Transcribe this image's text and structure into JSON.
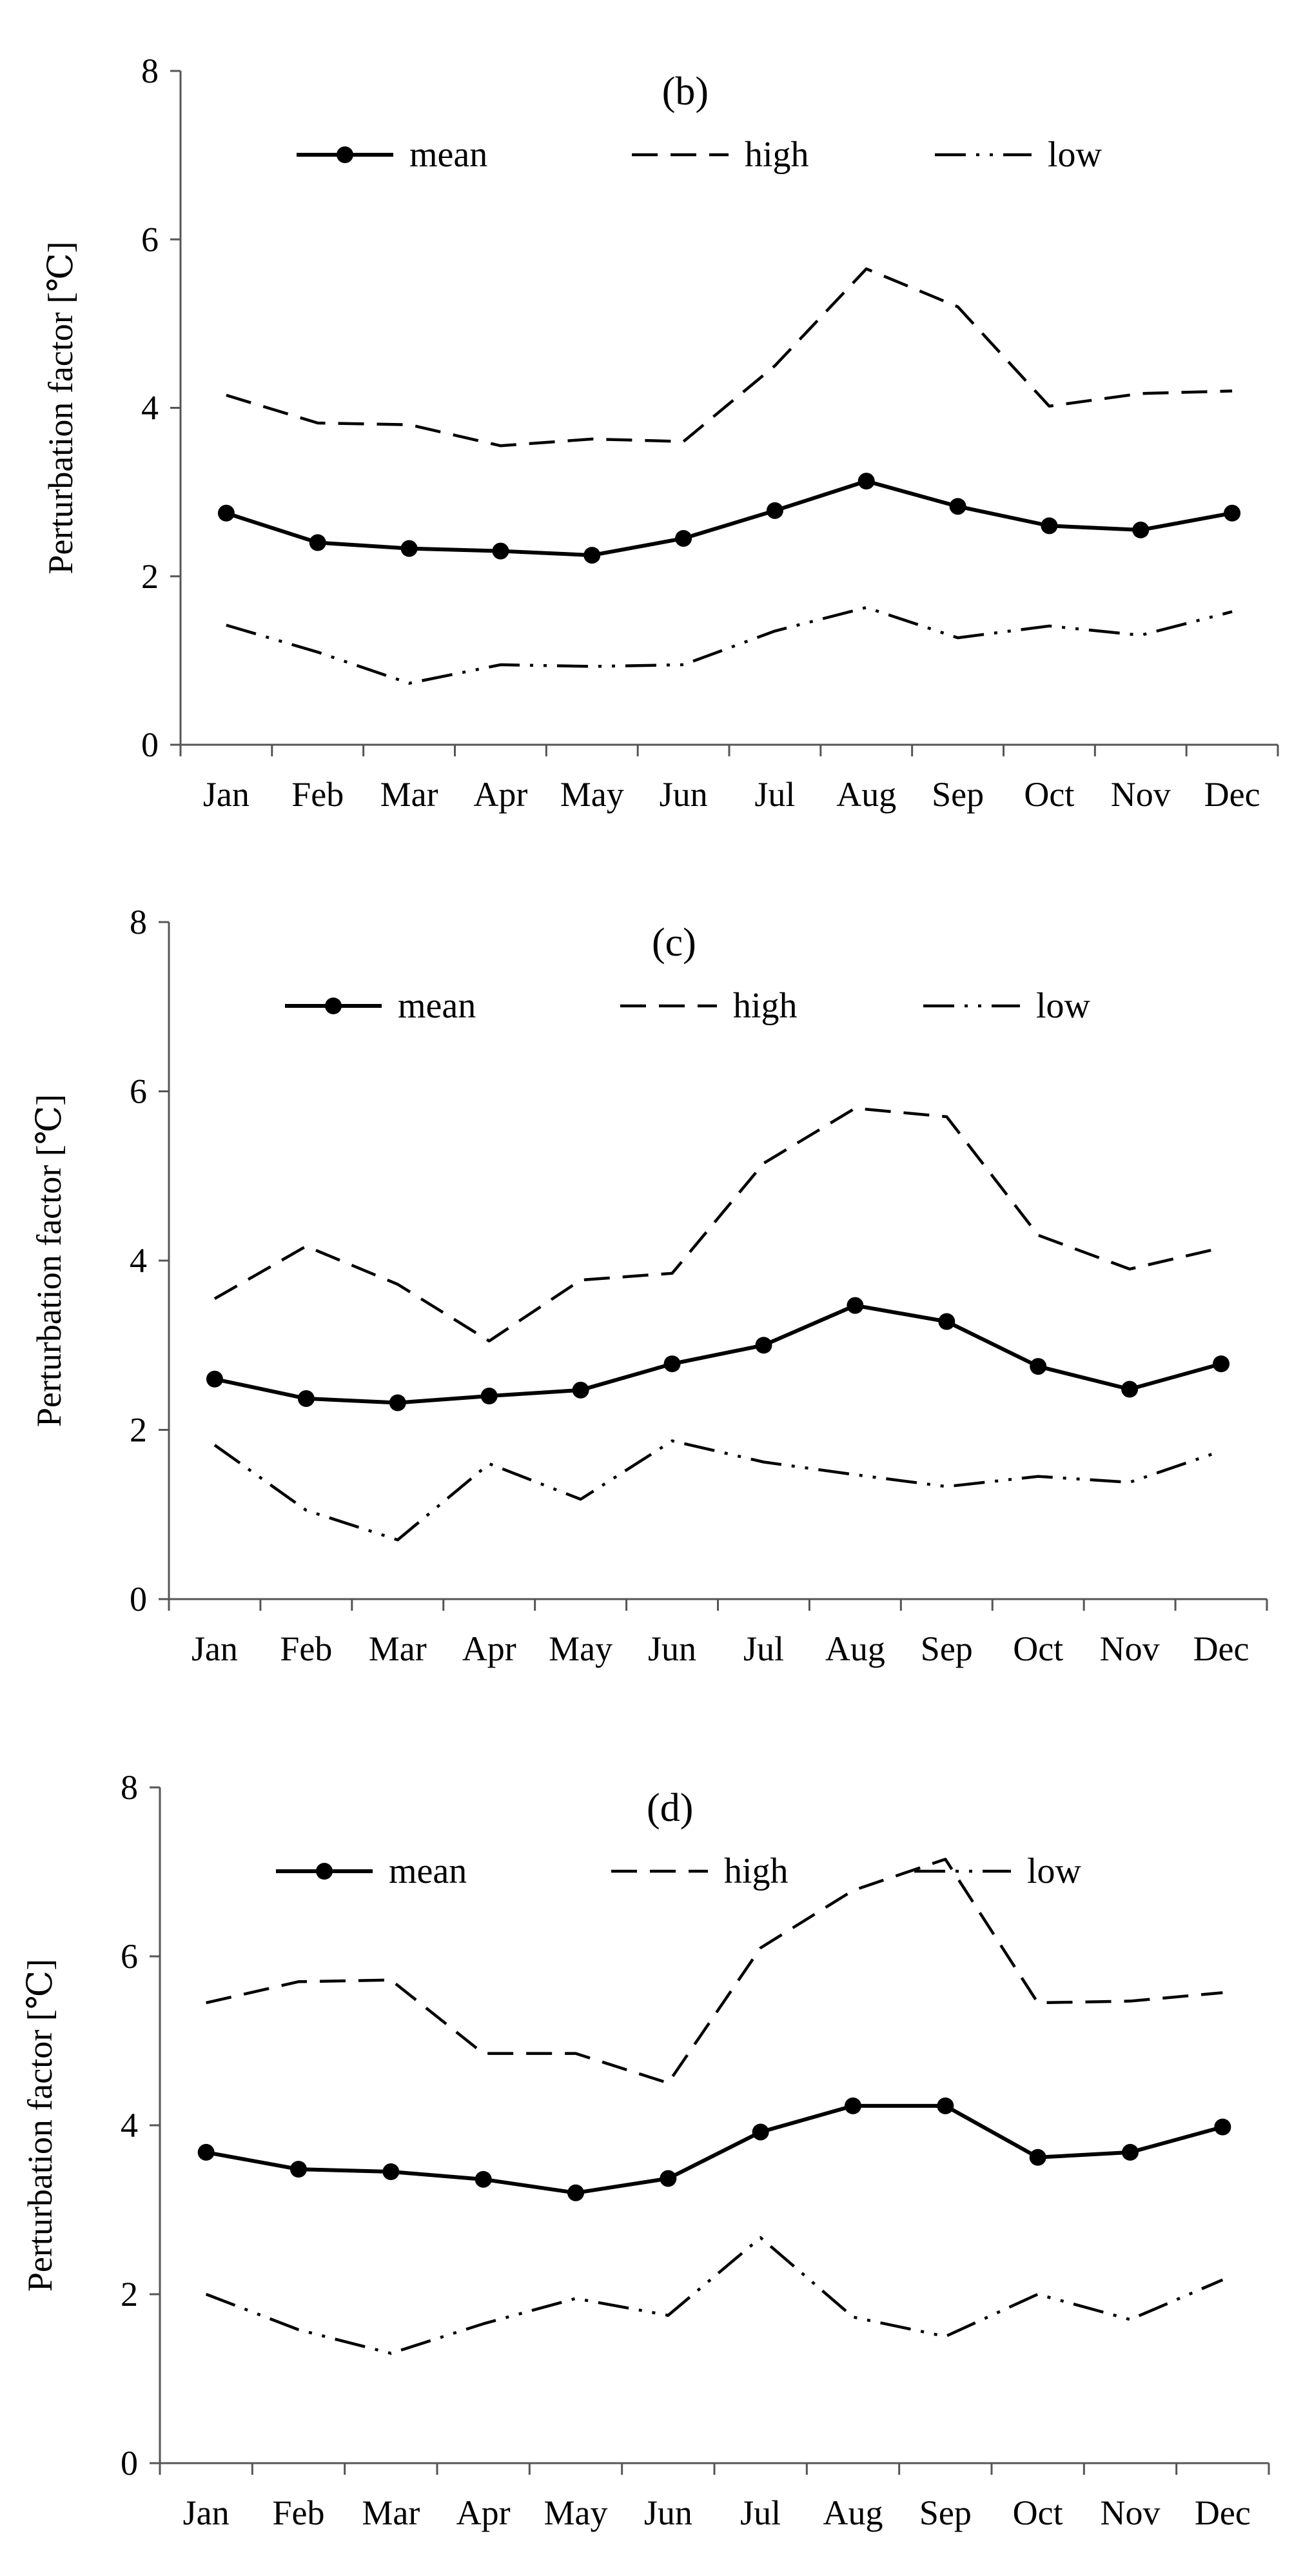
{
  "chart_data": [
    {
      "type": "line",
      "title": "(b)",
      "xlabel": "",
      "ylabel": "Perturbation factor  [℃]",
      "ylim": [
        0,
        8
      ],
      "yticks": [
        "0",
        "2",
        "4",
        "6",
        "8"
      ],
      "categories": [
        "Jan",
        "Feb",
        "Mar",
        "Apr",
        "May",
        "Jun",
        "Jul",
        "Aug",
        "Sep",
        "Oct",
        "Nov",
        "Dec"
      ],
      "legend_position": "top",
      "series": [
        {
          "name": "mean",
          "style": "solid-marker",
          "values": [
            2.75,
            2.4,
            2.33,
            2.3,
            2.25,
            2.45,
            2.78,
            3.13,
            2.83,
            2.6,
            2.55,
            2.75
          ]
        },
        {
          "name": "high",
          "style": "dashed",
          "values": [
            4.15,
            3.82,
            3.8,
            3.55,
            3.63,
            3.6,
            4.5,
            5.65,
            5.2,
            4.02,
            4.17,
            4.2
          ]
        },
        {
          "name": "low",
          "style": "dash-dot-dot",
          "values": [
            1.42,
            1.1,
            0.73,
            0.95,
            0.93,
            0.95,
            1.35,
            1.63,
            1.27,
            1.41,
            1.3,
            1.58
          ]
        }
      ]
    },
    {
      "type": "line",
      "title": "(c)",
      "xlabel": "",
      "ylabel": "Perturbation factor  [℃]",
      "ylim": [
        0,
        8
      ],
      "yticks": [
        "0",
        "2",
        "4",
        "6",
        "8"
      ],
      "categories": [
        "Jan",
        "Feb",
        "Mar",
        "Apr",
        "May",
        "Jun",
        "Jul",
        "Aug",
        "Sep",
        "Oct",
        "Nov",
        "Dec"
      ],
      "legend_position": "top",
      "series": [
        {
          "name": "mean",
          "style": "solid-marker",
          "values": [
            2.6,
            2.37,
            2.32,
            2.4,
            2.47,
            2.78,
            3.0,
            3.47,
            3.28,
            2.75,
            2.48,
            2.78
          ]
        },
        {
          "name": "high",
          "style": "dashed",
          "values": [
            3.55,
            4.17,
            3.72,
            3.05,
            3.77,
            3.85,
            5.15,
            5.8,
            5.7,
            4.3,
            3.9,
            4.15
          ]
        },
        {
          "name": "low",
          "style": "dash-dot-dot",
          "values": [
            1.82,
            1.05,
            0.7,
            1.6,
            1.18,
            1.87,
            1.62,
            1.47,
            1.33,
            1.45,
            1.38,
            1.75
          ]
        }
      ]
    },
    {
      "type": "line",
      "title": "(d)",
      "xlabel": "",
      "ylabel": "Perturbation factor  [℃]",
      "ylim": [
        0,
        8
      ],
      "yticks": [
        "0",
        "2",
        "4",
        "6",
        "8"
      ],
      "categories": [
        "Jan",
        "Feb",
        "Mar",
        "Apr",
        "May",
        "Jun",
        "Jul",
        "Aug",
        "Sep",
        "Oct",
        "Nov",
        "Dec"
      ],
      "legend_position": "top",
      "series": [
        {
          "name": "mean",
          "style": "solid-marker",
          "values": [
            3.68,
            3.48,
            3.45,
            3.36,
            3.2,
            3.37,
            3.92,
            4.23,
            4.23,
            3.62,
            3.68,
            3.98
          ]
        },
        {
          "name": "high",
          "style": "dashed",
          "values": [
            5.45,
            5.7,
            5.72,
            4.85,
            4.85,
            4.5,
            6.1,
            6.78,
            7.15,
            5.45,
            5.47,
            5.57
          ]
        },
        {
          "name": "low",
          "style": "dash-dot-dot",
          "values": [
            2.0,
            1.58,
            1.3,
            1.65,
            1.95,
            1.75,
            2.67,
            1.73,
            1.5,
            2.0,
            1.7,
            2.17
          ]
        }
      ]
    }
  ]
}
